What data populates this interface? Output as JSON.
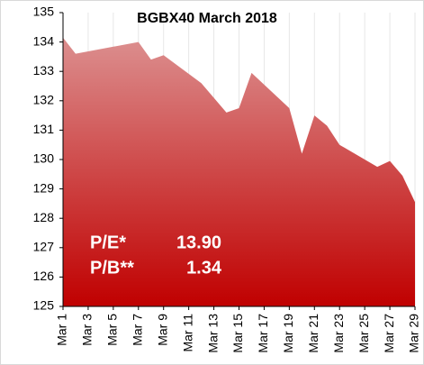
{
  "chart_data": {
    "type": "area",
    "title": "BGBX40 March 2018",
    "x": [
      1,
      2,
      7,
      8,
      9,
      12,
      14,
      15,
      16,
      19,
      20,
      21,
      22,
      23,
      26,
      27,
      28,
      29
    ],
    "values": [
      134.15,
      133.6,
      134.0,
      133.4,
      133.55,
      132.6,
      131.6,
      131.75,
      132.95,
      131.75,
      130.2,
      131.5,
      131.15,
      130.5,
      129.75,
      129.95,
      129.45,
      128.55
    ],
    "color_top": "#dc8f8f",
    "color_bottom": "#c00000",
    "xlim": [
      1,
      29
    ],
    "xticks": [
      {
        "value": 1,
        "label": "Mar 1"
      },
      {
        "value": 3,
        "label": "Mar 3"
      },
      {
        "value": 5,
        "label": "Mar 5"
      },
      {
        "value": 7,
        "label": "Mar 7"
      },
      {
        "value": 9,
        "label": "Mar 9"
      },
      {
        "value": 11,
        "label": "Mar 11"
      },
      {
        "value": 13,
        "label": "Mar 13"
      },
      {
        "value": 15,
        "label": "Mar 15"
      },
      {
        "value": 17,
        "label": "Mar 17"
      },
      {
        "value": 19,
        "label": "Mar 19"
      },
      {
        "value": 21,
        "label": "Mar 21"
      },
      {
        "value": 23,
        "label": "Mar 23"
      },
      {
        "value": 25,
        "label": "Mar 25"
      },
      {
        "value": 27,
        "label": "Mar 27"
      },
      {
        "value": 29,
        "label": "Mar 29"
      }
    ],
    "ylim": [
      125,
      135
    ],
    "yticks": [
      125,
      126,
      127,
      128,
      129,
      130,
      131,
      132,
      133,
      134,
      135
    ],
    "grid": true,
    "annotations": [
      [
        "P/E*",
        "13.90"
      ],
      [
        "P/B**",
        "1.34"
      ]
    ]
  }
}
